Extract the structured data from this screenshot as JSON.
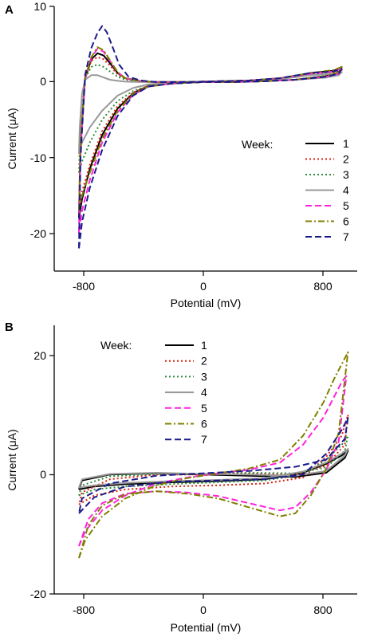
{
  "colors": {
    "1": "#000000",
    "2": "#dd2211",
    "3": "#2e8b3a",
    "4": "#999999",
    "5": "#ff22dd",
    "6": "#808000",
    "7": "#1a1a8c"
  },
  "chart_data": [
    {
      "type": "line",
      "panel": "A",
      "xlabel": "Potential (mV)",
      "ylabel": "Current (μA)",
      "xlim": [
        -960,
        1000
      ],
      "ylim": [
        -25,
        10
      ],
      "xticks": [
        -800,
        0,
        800
      ],
      "yticks": [
        -20,
        -10,
        0,
        10
      ],
      "legend_title": "Week:",
      "legend_placement": "right",
      "series": [
        {
          "name": "1",
          "style": "solid",
          "color_key": "1",
          "x": [
            -800,
            -790,
            -760,
            -720,
            -680,
            -640,
            -600,
            -550,
            -500,
            -400,
            -300,
            -100,
            100,
            300,
            500,
            700,
            850,
            900,
            880,
            800,
            600,
            400,
            200,
            0,
            -200,
            -350,
            -450,
            -550,
            -650,
            -730,
            -780,
            -800
          ],
          "y": [
            -18,
            -8,
            0.5,
            3,
            3.8,
            3.5,
            2.5,
            1.2,
            0.5,
            0.1,
            0,
            0,
            0.1,
            0.2,
            0.5,
            1.2,
            1.5,
            2.0,
            1.2,
            0.8,
            0.3,
            0.1,
            0,
            0,
            -0.2,
            -0.5,
            -1.5,
            -3.5,
            -7,
            -11.5,
            -15.5,
            -18
          ]
        },
        {
          "name": "2",
          "style": "dotted",
          "color_key": "2",
          "x": [
            -800,
            -790,
            -760,
            -720,
            -680,
            -640,
            -600,
            -550,
            -500,
            -400,
            -300,
            -100,
            100,
            300,
            500,
            700,
            850,
            900,
            880,
            800,
            600,
            400,
            200,
            0,
            -200,
            -350,
            -450,
            -550,
            -650,
            -730,
            -780,
            -800
          ],
          "y": [
            -17,
            -7.5,
            0.5,
            2.8,
            3.3,
            3.0,
            2.2,
            1.0,
            0.4,
            0.1,
            0,
            0,
            0.1,
            0.2,
            0.4,
            1.0,
            1.3,
            1.6,
            1.0,
            0.7,
            0.3,
            0.1,
            0,
            0,
            -0.2,
            -0.5,
            -1.4,
            -3.2,
            -6.5,
            -11,
            -14.5,
            -17
          ]
        },
        {
          "name": "3",
          "style": "dotted",
          "color_key": "3",
          "x": [
            -800,
            -790,
            -760,
            -720,
            -680,
            -640,
            -600,
            -550,
            -500,
            -400,
            -300,
            -100,
            100,
            300,
            500,
            700,
            850,
            900,
            880,
            800,
            600,
            400,
            200,
            0,
            -200,
            -350,
            -450,
            -550,
            -650,
            -730,
            -780,
            -800
          ],
          "y": [
            -12,
            -5,
            0.5,
            2.0,
            2.3,
            2.0,
            1.4,
            0.7,
            0.3,
            0.1,
            0,
            0,
            0.1,
            0.2,
            0.4,
            0.9,
            1.1,
            1.3,
            0.9,
            0.6,
            0.3,
            0.1,
            0,
            0,
            -0.2,
            -0.5,
            -1.2,
            -2.5,
            -5,
            -8,
            -10.5,
            -12
          ]
        },
        {
          "name": "4",
          "style": "solid",
          "color_key": "4",
          "x": [
            -800,
            -795,
            -780,
            -760,
            -720,
            -680,
            -640,
            -600,
            -550,
            -500,
            -400,
            -300,
            -100,
            100,
            300,
            500,
            700,
            850,
            900,
            880,
            800,
            600,
            400,
            200,
            0,
            -200,
            -350,
            -450,
            -550,
            -650,
            -730,
            -780,
            -800
          ],
          "y": [
            -9.5,
            -6,
            -1.5,
            0.3,
            0.9,
            0.9,
            0.6,
            0.3,
            0.15,
            0.05,
            0,
            0,
            0,
            0.1,
            0.2,
            0.4,
            0.9,
            1.1,
            1.3,
            0.9,
            0.6,
            0.3,
            0.1,
            0,
            0,
            -0.1,
            -0.3,
            -0.8,
            -1.8,
            -3.8,
            -6,
            -8,
            -9.5
          ]
        },
        {
          "name": "5",
          "style": "dashed",
          "color_key": "5",
          "x": [
            -800,
            -790,
            -760,
            -720,
            -680,
            -640,
            -600,
            -550,
            -500,
            -400,
            -300,
            -100,
            100,
            300,
            500,
            700,
            850,
            900,
            880,
            800,
            600,
            400,
            200,
            0,
            -200,
            -350,
            -450,
            -550,
            -650,
            -730,
            -780,
            -800
          ],
          "y": [
            -20,
            -9,
            0.6,
            3.2,
            4.4,
            4.0,
            2.8,
            1.3,
            0.5,
            0.1,
            0,
            0,
            0.1,
            0.2,
            0.5,
            1.1,
            1.4,
            1.8,
            1.1,
            0.7,
            0.3,
            0.1,
            0,
            0,
            -0.2,
            -0.6,
            -1.7,
            -4,
            -8,
            -13,
            -17,
            -20
          ]
        },
        {
          "name": "6",
          "style": "dashdot",
          "color_key": "6",
          "x": [
            -800,
            -790,
            -760,
            -720,
            -680,
            -640,
            -600,
            -550,
            -500,
            -400,
            -300,
            -100,
            100,
            300,
            500,
            700,
            850,
            900,
            880,
            800,
            600,
            400,
            200,
            0,
            -200,
            -350,
            -450,
            -550,
            -650,
            -730,
            -780,
            -800
          ],
          "y": [
            -17,
            -8,
            0.6,
            3.3,
            4.6,
            4.2,
            2.9,
            1.3,
            0.5,
            0.1,
            0,
            0,
            0.1,
            0.2,
            0.5,
            1.2,
            1.6,
            2.0,
            1.3,
            0.8,
            0.3,
            0.1,
            0,
            0,
            -0.2,
            -0.6,
            -1.6,
            -3.8,
            -7.5,
            -12,
            -15,
            -17
          ]
        },
        {
          "name": "7",
          "style": "dashed",
          "color_key": "7",
          "x": [
            -800,
            -790,
            -760,
            -720,
            -680,
            -650,
            -620,
            -580,
            -540,
            -480,
            -400,
            -300,
            -100,
            100,
            300,
            500,
            700,
            850,
            900,
            880,
            800,
            600,
            400,
            200,
            0,
            -200,
            -350,
            -450,
            -550,
            -650,
            -730,
            -780,
            -800
          ],
          "y": [
            -22,
            -10,
            1.0,
            4.5,
            6.5,
            7.4,
            6.6,
            4.5,
            2.3,
            0.7,
            0.2,
            0,
            0,
            0.1,
            0.2,
            0.5,
            1.2,
            1.4,
            1.7,
            1.1,
            0.7,
            0.3,
            0.1,
            0,
            0,
            -0.2,
            -0.6,
            -1.8,
            -4.5,
            -9,
            -14,
            -18.5,
            -22
          ]
        }
      ]
    },
    {
      "type": "line",
      "panel": "B",
      "xlabel": "Potential (mV)",
      "ylabel": "Current (μA)",
      "xlim": [
        -960,
        1000
      ],
      "ylim": [
        -20,
        25
      ],
      "xticks": [
        -800,
        0,
        800
      ],
      "yticks": [
        -20,
        0,
        20
      ],
      "legend_title": "Week:",
      "legend_placement": "top-left",
      "series": [
        {
          "name": "1",
          "style": "solid",
          "color_key": "1",
          "x": [
            -800,
            -700,
            -500,
            -200,
            100,
            400,
            650,
            800,
            900,
            940,
            920,
            800,
            600,
            300,
            0,
            -300,
            -600,
            -780,
            -800
          ],
          "y": [
            -2.5,
            -2.0,
            -1.6,
            -1.3,
            -1.1,
            -0.8,
            0.3,
            1.8,
            3.2,
            4.0,
            2.8,
            0.3,
            -0.4,
            -0.2,
            0,
            0.2,
            0,
            -1.0,
            -2.5
          ]
        },
        {
          "name": "2",
          "style": "dotted",
          "color_key": "2",
          "x": [
            -800,
            -700,
            -500,
            -200,
            100,
            400,
            650,
            800,
            900,
            940,
            920,
            800,
            600,
            300,
            0,
            -300,
            -600,
            -780,
            -800
          ],
          "y": [
            -5,
            -3.5,
            -2.5,
            -2.0,
            -1.8,
            -1.5,
            -0.5,
            3.0,
            6.5,
            10.0,
            5.0,
            1.5,
            0,
            0.2,
            0,
            0,
            -0.8,
            -3.0,
            -5
          ]
        },
        {
          "name": "3",
          "style": "dotted",
          "color_key": "3",
          "x": [
            -800,
            -700,
            -500,
            -200,
            100,
            400,
            650,
            800,
            900,
            940,
            920,
            800,
            600,
            300,
            0,
            -300,
            -600,
            -780,
            -800
          ],
          "y": [
            -3.5,
            -2.5,
            -2.0,
            -1.6,
            -1.3,
            -1.0,
            0,
            2.5,
            5.0,
            6.5,
            4.0,
            1.2,
            0.2,
            0.3,
            0.1,
            0.1,
            -0.3,
            -1.8,
            -3.5
          ]
        },
        {
          "name": "4",
          "style": "solid",
          "color_key": "4",
          "x": [
            -800,
            -700,
            -500,
            -200,
            100,
            400,
            650,
            800,
            900,
            940,
            920,
            800,
            600,
            300,
            0,
            -300,
            -600,
            -780,
            -800
          ],
          "y": [
            -2.2,
            -1.8,
            -1.4,
            -1.1,
            -0.9,
            -0.6,
            0.5,
            2.0,
            3.5,
            4.3,
            3.2,
            0.6,
            -0.2,
            0,
            0.1,
            0.3,
            0.1,
            -0.8,
            -2.2
          ]
        },
        {
          "name": "5",
          "style": "dashed",
          "color_key": "5",
          "x": [
            -800,
            -740,
            -650,
            -500,
            -300,
            -100,
            100,
            300,
            500,
            600,
            700,
            800,
            880,
            930,
            900,
            850,
            780,
            650,
            500,
            300,
            100,
            -100,
            -300,
            -500,
            -650,
            -760,
            -800
          ],
          "y": [
            -12,
            -7.5,
            -4.8,
            -3.2,
            -2.8,
            -3.0,
            -3.6,
            -4.8,
            -6,
            -5.5,
            -3.0,
            0.8,
            5.5,
            16.5,
            15.5,
            13.0,
            9.5,
            5.0,
            2.0,
            0.8,
            0.2,
            -0.5,
            -1.5,
            -3.5,
            -6.0,
            -9.5,
            -12
          ]
        },
        {
          "name": "6",
          "style": "dashdot",
          "color_key": "6",
          "x": [
            -800,
            -740,
            -650,
            -500,
            -300,
            -100,
            100,
            300,
            500,
            600,
            700,
            800,
            880,
            940,
            910,
            850,
            780,
            650,
            500,
            300,
            100,
            -100,
            -300,
            -500,
            -650,
            -760,
            -800
          ],
          "y": [
            -14,
            -8.5,
            -5.2,
            -3.3,
            -2.8,
            -3.2,
            -4.0,
            -5.5,
            -7,
            -6.5,
            -3.5,
            1.0,
            7.0,
            20.5,
            19.0,
            16.0,
            12.0,
            6.5,
            2.5,
            1.0,
            0.2,
            -0.6,
            -1.8,
            -4.0,
            -7.0,
            -11.0,
            -14
          ]
        },
        {
          "name": "7",
          "style": "dashed",
          "color_key": "7",
          "x": [
            -800,
            -700,
            -500,
            -200,
            100,
            400,
            650,
            800,
            900,
            940,
            920,
            800,
            600,
            300,
            0,
            -300,
            -600,
            -780,
            -800
          ],
          "y": [
            -6.5,
            -3.8,
            -2.0,
            -1.2,
            -1.0,
            -0.8,
            0,
            3.5,
            7.5,
            9.5,
            6.0,
            2.5,
            1.3,
            0.6,
            0.2,
            -0.2,
            -1.5,
            -4.0,
            -6.5
          ]
        }
      ]
    }
  ]
}
